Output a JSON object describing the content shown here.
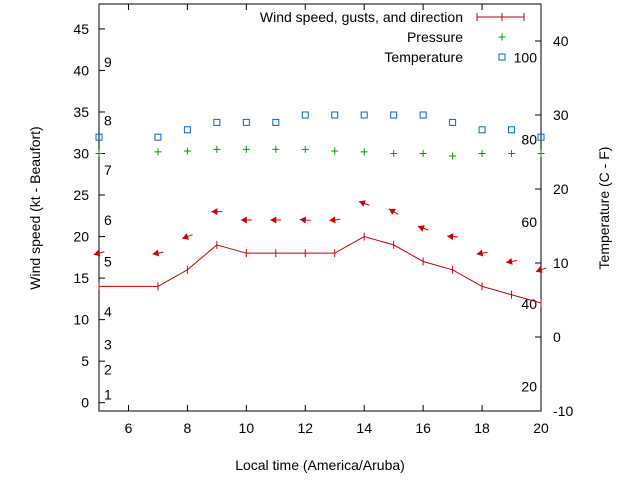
{
  "chart_data": {
    "type": "line",
    "xlabel": "Local time (America/Aruba)",
    "ylabel_left": "Wind speed (kt - Beaufort)",
    "ylabel_right": "Temperature (C - F)",
    "xlim": [
      5,
      20
    ],
    "ylim_left": [
      -1,
      48
    ],
    "ylim_right": [
      -10,
      45
    ],
    "x_ticks": [
      6,
      8,
      10,
      12,
      14,
      16,
      18,
      20
    ],
    "y_ticks_left": [
      0,
      5,
      10,
      15,
      20,
      25,
      30,
      35,
      40,
      45
    ],
    "y_ticks_right": [
      -10,
      0,
      10,
      20,
      30,
      40
    ],
    "beaufort_labels": [
      {
        "label": "1",
        "kt": 1
      },
      {
        "label": "2",
        "kt": 4
      },
      {
        "label": "3",
        "kt": 7
      },
      {
        "label": "4",
        "kt": 11
      },
      {
        "label": "5",
        "kt": 17
      },
      {
        "label": "6",
        "kt": 22
      },
      {
        "label": "7",
        "kt": 28
      },
      {
        "label": "8",
        "kt": 34
      },
      {
        "label": "9",
        "kt": 41
      }
    ],
    "fahrenheit_labels": [
      {
        "label": "20",
        "f": 20
      },
      {
        "label": "40",
        "f": 40
      },
      {
        "label": "60",
        "f": 60
      },
      {
        "label": "80",
        "f": 80
      },
      {
        "label": "100",
        "f": 100
      }
    ],
    "legend": {
      "placement": "top-right",
      "entries": [
        {
          "label": "Wind speed, gusts, and direction",
          "color": "#cc0000",
          "marker": "line"
        },
        {
          "label": "Pressure",
          "color": "#009900",
          "marker": "plus"
        },
        {
          "label": "Temperature",
          "color": "#0066cc",
          "marker": "square"
        }
      ]
    },
    "series": [
      {
        "name": "Wind speed, gusts, and direction",
        "color": "#cc0000",
        "x": [
          5,
          7,
          8,
          9,
          10,
          11,
          12,
          13,
          14,
          15,
          16,
          17,
          18,
          19,
          20
        ],
        "values": [
          14,
          14,
          16,
          19,
          18,
          18,
          18,
          18,
          20,
          19,
          17,
          16,
          14,
          13,
          12
        ]
      },
      {
        "name": "Wind direction arrows",
        "color": "#cc0000",
        "x": [
          5,
          7,
          8,
          9,
          10,
          11,
          12,
          13,
          14,
          15,
          16,
          17,
          18,
          19,
          20
        ],
        "values": [
          18,
          18,
          20,
          23,
          22,
          22,
          22,
          22,
          24,
          23,
          21,
          20,
          18,
          17,
          16
        ],
        "angles_deg": [
          195,
          190,
          200,
          180,
          180,
          180,
          175,
          185,
          160,
          150,
          160,
          175,
          190,
          190,
          200
        ]
      },
      {
        "name": "Pressure",
        "color": "#009900",
        "x": [
          5,
          7,
          8,
          9,
          10,
          11,
          12,
          13,
          14,
          15,
          16,
          17,
          18,
          19,
          20
        ],
        "values": [
          30,
          30.2,
          30.3,
          30.5,
          30.5,
          30.5,
          30.5,
          30.3,
          30.2,
          30,
          30,
          29.7,
          30,
          30,
          30
        ]
      },
      {
        "name": "Temperature",
        "color": "#0066cc",
        "x": [
          5,
          7,
          8,
          9,
          10,
          11,
          12,
          13,
          14,
          15,
          16,
          17,
          18,
          19,
          20
        ],
        "values": [
          27,
          27,
          28,
          29,
          29,
          29,
          30,
          30,
          30,
          30,
          30,
          29,
          28,
          28,
          27
        ]
      }
    ]
  }
}
